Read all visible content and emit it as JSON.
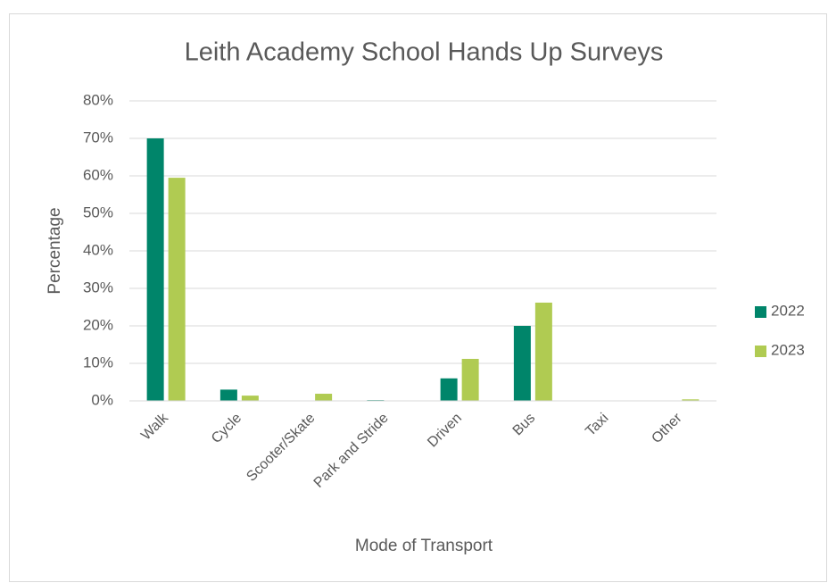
{
  "chart_data": {
    "type": "bar",
    "title": "Leith Academy School Hands Up Surveys",
    "x_label": "Mode of Transport",
    "y_label": "Percentage",
    "categories": [
      "Walk",
      "Cycle",
      "Scooter/Skate",
      "Park and Stride",
      "Driven",
      "Bus",
      "Taxi",
      "Other"
    ],
    "series": [
      {
        "name": "2022",
        "color": "#00856a",
        "values": [
          70,
          3,
          0,
          0.2,
          6,
          20,
          0,
          0
        ]
      },
      {
        "name": "2023",
        "color": "#b0cb52",
        "values": [
          59.5,
          1.4,
          1.9,
          0,
          11.2,
          26.2,
          0,
          0.4
        ]
      }
    ],
    "ylim": [
      0,
      80
    ],
    "yticks": [
      {
        "value": 0,
        "label": "0%"
      },
      {
        "value": 10,
        "label": "10%"
      },
      {
        "value": 20,
        "label": "20%"
      },
      {
        "value": 30,
        "label": "30%"
      },
      {
        "value": 40,
        "label": "40%"
      },
      {
        "value": 50,
        "label": "50%"
      },
      {
        "value": 60,
        "label": "60%"
      },
      {
        "value": 70,
        "label": "70%"
      },
      {
        "value": 80,
        "label": "80%"
      }
    ],
    "grid": true,
    "legend": "right"
  }
}
